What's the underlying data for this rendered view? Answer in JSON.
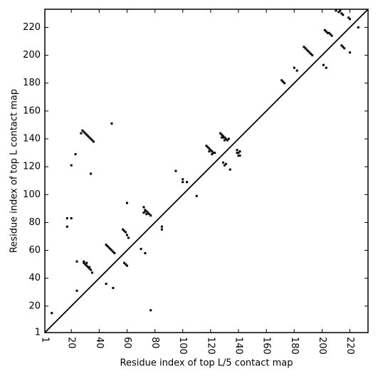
{
  "chart_data": {
    "type": "scatter",
    "x_label": "Residue index of top L/5 contact map",
    "y_label": "Residue index of top L contact map",
    "color": "#000000",
    "xlim": [
      1,
      233
    ],
    "ylim": [
      1,
      233
    ],
    "xticks": [
      1,
      20,
      40,
      60,
      80,
      100,
      120,
      140,
      160,
      180,
      200,
      220
    ],
    "yticks": [
      1,
      20,
      40,
      60,
      80,
      100,
      120,
      140,
      160,
      180,
      200,
      220
    ],
    "x": [
      28,
      29,
      30,
      31,
      32,
      33,
      34,
      35,
      36,
      27,
      49,
      34,
      23,
      20,
      24,
      24,
      29,
      30,
      31,
      32,
      33,
      34,
      35,
      29,
      31,
      33,
      45,
      46,
      47,
      48,
      49,
      50,
      51,
      57,
      58,
      59,
      60,
      61,
      58,
      59,
      60,
      72,
      73,
      74,
      75,
      76,
      77,
      72,
      73,
      74,
      70,
      73,
      60,
      17,
      20,
      17,
      6,
      45,
      50,
      77,
      85,
      85,
      95,
      100,
      100,
      103,
      110,
      117,
      118,
      119,
      120,
      121,
      122,
      123,
      119,
      121,
      127,
      128,
      129,
      130,
      131,
      132,
      133,
      129,
      130,
      131,
      128,
      129,
      130,
      134,
      139,
      140,
      141,
      139,
      140,
      141,
      171,
      172,
      173,
      180,
      182,
      187,
      188,
      189,
      190,
      191,
      192,
      193,
      201,
      203,
      202,
      203,
      204,
      205,
      206,
      207,
      214,
      215,
      216,
      210,
      212,
      213,
      214,
      215,
      219,
      220,
      220,
      226
    ],
    "values": [
      146,
      145,
      144,
      143,
      142,
      141,
      140,
      139,
      138,
      144,
      151,
      115,
      129,
      121,
      31,
      52,
      51,
      50,
      49,
      48,
      47,
      46,
      44,
      52,
      51,
      48,
      64,
      63,
      62,
      61,
      60,
      59,
      58,
      75,
      74,
      73,
      71,
      69,
      51,
      50,
      49,
      91,
      89,
      88,
      87,
      86,
      85,
      87,
      88,
      86,
      61,
      58,
      94,
      83,
      83,
      77,
      15,
      36,
      33,
      17,
      77,
      75,
      117,
      111,
      109,
      109,
      99,
      135,
      134,
      133,
      132,
      131,
      130,
      130,
      131,
      129,
      144,
      143,
      142,
      141,
      140,
      139,
      140,
      123,
      121,
      122,
      141,
      141,
      139,
      118,
      132,
      130,
      128,
      130,
      128,
      131,
      182,
      181,
      180,
      191,
      189,
      206,
      205,
      204,
      203,
      202,
      201,
      200,
      193,
      191,
      218,
      217,
      216,
      216,
      215,
      214,
      207,
      206,
      205,
      232,
      231,
      232,
      230,
      229,
      227,
      226,
      202,
      220
    ]
  }
}
